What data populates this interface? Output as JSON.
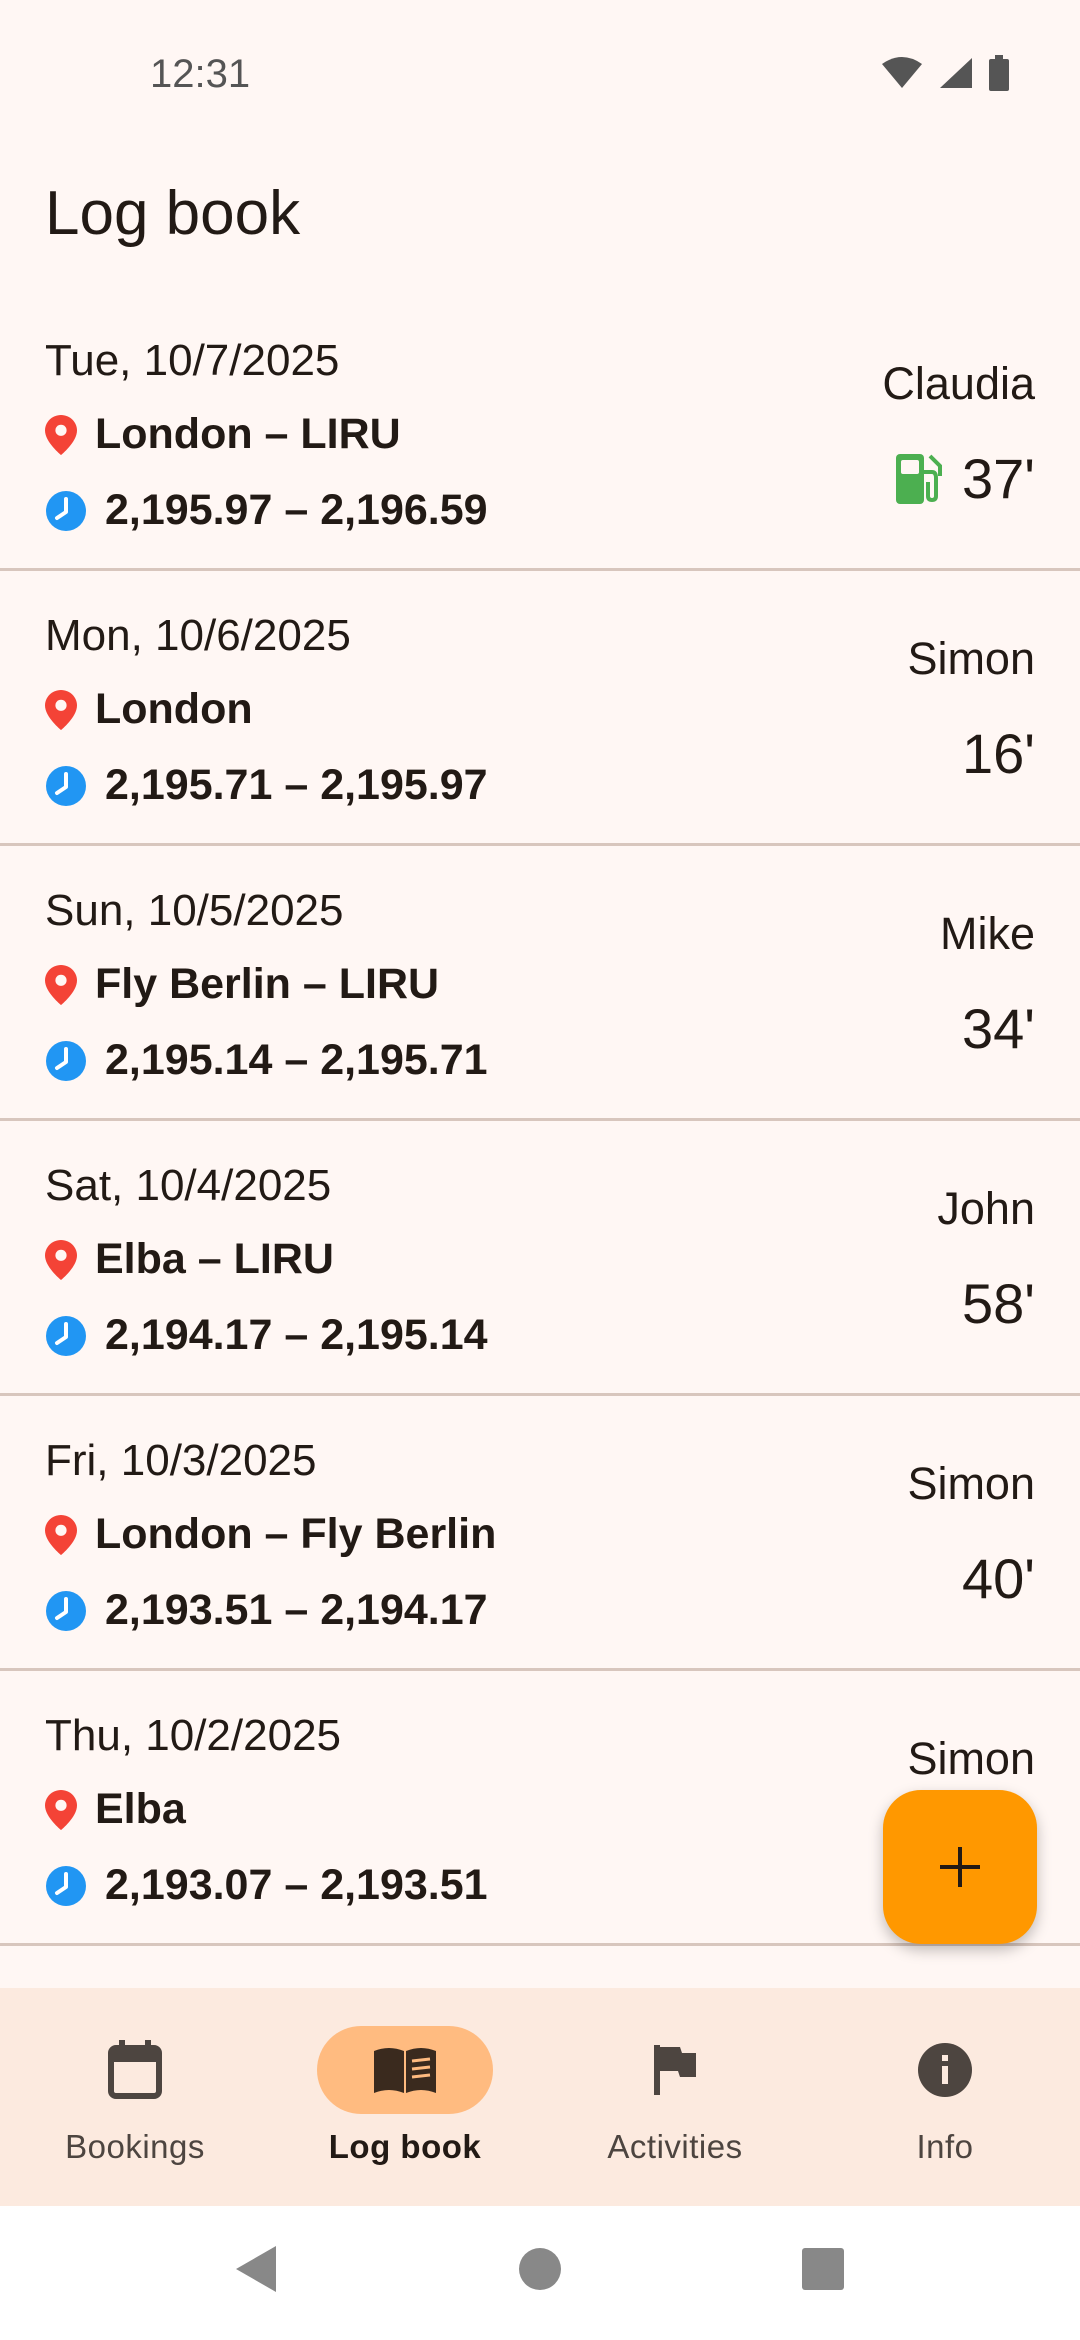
{
  "status_bar": {
    "time": "12:31",
    "icons": [
      "wifi-icon",
      "signal-icon",
      "battery-icon"
    ]
  },
  "page_title": "Log book",
  "entries": [
    {
      "date": "Tue, 10/7/2025",
      "route": "London – LIRU",
      "hours": "2,195.97 – 2,196.59",
      "pilot": "Claudia",
      "duration": "37'",
      "refuel": true
    },
    {
      "date": "Mon, 10/6/2025",
      "route": "London",
      "hours": "2,195.71 – 2,195.97",
      "pilot": "Simon",
      "duration": "16'",
      "refuel": false
    },
    {
      "date": "Sun, 10/5/2025",
      "route": "Fly Berlin – LIRU",
      "hours": "2,195.14 – 2,195.71",
      "pilot": "Mike",
      "duration": "34'",
      "refuel": false
    },
    {
      "date": "Sat, 10/4/2025",
      "route": "Elba – LIRU",
      "hours": "2,194.17 – 2,195.14",
      "pilot": "John",
      "duration": "58'",
      "refuel": false
    },
    {
      "date": "Fri, 10/3/2025",
      "route": "London – Fly Berlin",
      "hours": "2,193.51 – 2,194.17",
      "pilot": "Simon",
      "duration": "40'",
      "refuel": false
    },
    {
      "date": "Thu, 10/2/2025",
      "route": "Elba",
      "hours": "2,193.07 – 2,193.51",
      "pilot": "Simon",
      "duration": "",
      "refuel": false
    }
  ],
  "fab": {
    "icon": "plus-icon"
  },
  "bottom_nav": {
    "items": [
      {
        "label": "Bookings",
        "icon": "calendar-icon",
        "active": false
      },
      {
        "label": "Log book",
        "icon": "book-icon",
        "active": true
      },
      {
        "label": "Activities",
        "icon": "flag-icon",
        "active": false
      },
      {
        "label": "Info",
        "icon": "info-icon",
        "active": false
      }
    ]
  },
  "colors": {
    "background": "#FFF7F4",
    "accent": "#FF9800",
    "nav_active_pill": "#FFBB80",
    "pin": "#F44336",
    "clock": "#2196F3",
    "fuel": "#4CAF50"
  }
}
